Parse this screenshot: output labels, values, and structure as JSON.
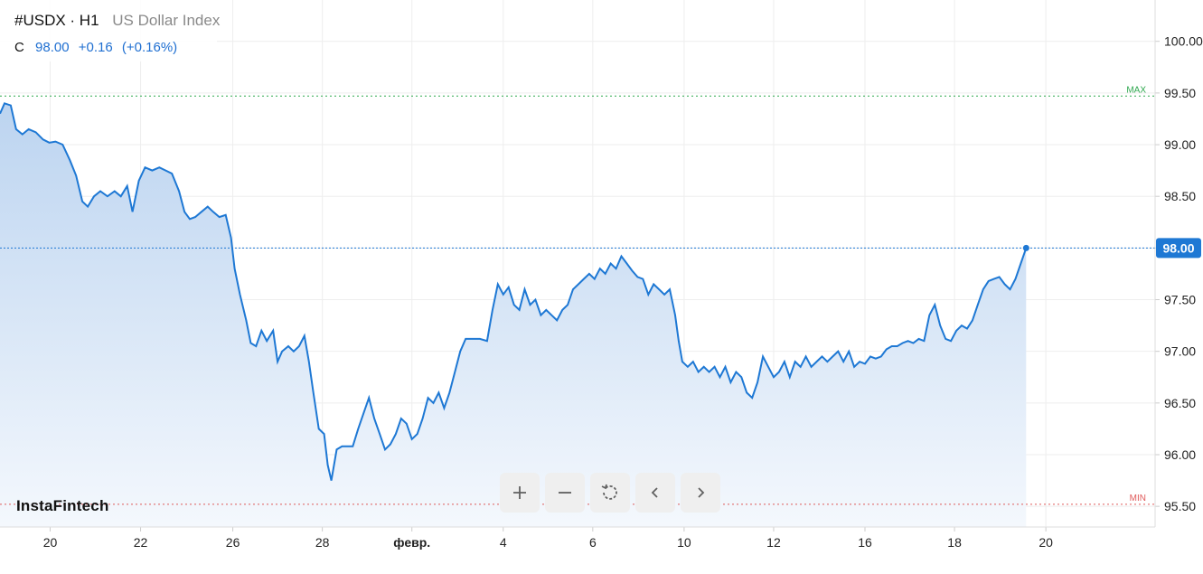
{
  "header": {
    "symbol": "#USDX · H1",
    "index_name": "US Dollar Index",
    "close_label": "C",
    "close_value": "98.00",
    "change": "+0.16",
    "change_pct": "(+0.16%)"
  },
  "brand": "InstaFintech",
  "controls": [
    {
      "name": "zoom-in-button",
      "icon": "plus-icon"
    },
    {
      "name": "zoom-out-button",
      "icon": "minus-icon"
    },
    {
      "name": "reset-button",
      "icon": "reset-icon"
    },
    {
      "name": "scroll-left-button",
      "icon": "chevron-left-icon"
    },
    {
      "name": "scroll-right-button",
      "icon": "chevron-right-icon"
    }
  ],
  "colors": {
    "line": "#1e78d4",
    "fill_top": "#bcd4f0",
    "fill_bottom": "#f4f8fd",
    "max_line": "#2fa84f",
    "min_line": "#e05a5a",
    "current_line": "#1e78d4",
    "grid": "#eeeeee",
    "axis_text": "#222222"
  },
  "chart_data": {
    "type": "area",
    "ylim": [
      95.3,
      100.4
    ],
    "y_ticks": [
      "95.50",
      "96.00",
      "96.50",
      "97.00",
      "97.50",
      "98.00",
      "98.50",
      "99.00",
      "99.50",
      "100.00"
    ],
    "x_ticks": [
      {
        "label": "20",
        "t": 0.56
      },
      {
        "label": "22",
        "t": 1.57
      },
      {
        "label": "26",
        "t": 2.6
      },
      {
        "label": "28",
        "t": 3.6
      },
      {
        "label": "февр.",
        "t": 4.6
      },
      {
        "label": "4",
        "t": 5.62
      },
      {
        "label": "6",
        "t": 6.62
      },
      {
        "label": "10",
        "t": 7.64
      },
      {
        "label": "12",
        "t": 8.64
      },
      {
        "label": "16",
        "t": 9.66
      },
      {
        "label": "18",
        "t": 10.66
      },
      {
        "label": "20",
        "t": 11.68
      }
    ],
    "x_range": [
      0,
      12.9
    ],
    "max_label": "MAX",
    "max_value": 99.47,
    "min_label": "MIN",
    "min_value": 95.52,
    "current_value": 98.0,
    "current_label": "98.00",
    "series": [
      {
        "points": [
          [
            0.0,
            99.3
          ],
          [
            0.05,
            99.4
          ],
          [
            0.12,
            99.38
          ],
          [
            0.18,
            99.15
          ],
          [
            0.25,
            99.1
          ],
          [
            0.32,
            99.15
          ],
          [
            0.4,
            99.12
          ],
          [
            0.48,
            99.05
          ],
          [
            0.55,
            99.02
          ],
          [
            0.62,
            99.03
          ],
          [
            0.7,
            99.0
          ],
          [
            0.78,
            98.85
          ],
          [
            0.85,
            98.7
          ],
          [
            0.92,
            98.45
          ],
          [
            0.98,
            98.4
          ],
          [
            1.05,
            98.5
          ],
          [
            1.12,
            98.55
          ],
          [
            1.2,
            98.5
          ],
          [
            1.28,
            98.55
          ],
          [
            1.35,
            98.5
          ],
          [
            1.42,
            98.6
          ],
          [
            1.48,
            98.35
          ],
          [
            1.55,
            98.65
          ],
          [
            1.62,
            98.78
          ],
          [
            1.7,
            98.75
          ],
          [
            1.78,
            98.78
          ],
          [
            1.85,
            98.75
          ],
          [
            1.92,
            98.72
          ],
          [
            2.0,
            98.55
          ],
          [
            2.06,
            98.35
          ],
          [
            2.12,
            98.28
          ],
          [
            2.18,
            98.3
          ],
          [
            2.25,
            98.35
          ],
          [
            2.32,
            98.4
          ],
          [
            2.38,
            98.35
          ],
          [
            2.45,
            98.3
          ],
          [
            2.52,
            98.32
          ],
          [
            2.58,
            98.1
          ],
          [
            2.62,
            97.8
          ],
          [
            2.68,
            97.55
          ],
          [
            2.75,
            97.3
          ],
          [
            2.8,
            97.08
          ],
          [
            2.86,
            97.05
          ],
          [
            2.92,
            97.2
          ],
          [
            2.98,
            97.1
          ],
          [
            3.05,
            97.2
          ],
          [
            3.1,
            96.9
          ],
          [
            3.15,
            97.0
          ],
          [
            3.22,
            97.05
          ],
          [
            3.28,
            97.0
          ],
          [
            3.34,
            97.05
          ],
          [
            3.4,
            97.15
          ],
          [
            3.45,
            96.9
          ],
          [
            3.5,
            96.6
          ],
          [
            3.56,
            96.25
          ],
          [
            3.62,
            96.2
          ],
          [
            3.66,
            95.9
          ],
          [
            3.7,
            95.75
          ],
          [
            3.76,
            96.05
          ],
          [
            3.82,
            96.08
          ],
          [
            3.88,
            96.08
          ],
          [
            3.94,
            96.08
          ],
          [
            4.0,
            96.25
          ],
          [
            4.06,
            96.4
          ],
          [
            4.12,
            96.55
          ],
          [
            4.18,
            96.35
          ],
          [
            4.24,
            96.2
          ],
          [
            4.3,
            96.05
          ],
          [
            4.36,
            96.1
          ],
          [
            4.42,
            96.2
          ],
          [
            4.48,
            96.35
          ],
          [
            4.54,
            96.3
          ],
          [
            4.6,
            96.15
          ],
          [
            4.66,
            96.2
          ],
          [
            4.72,
            96.35
          ],
          [
            4.78,
            96.55
          ],
          [
            4.84,
            96.5
          ],
          [
            4.9,
            96.6
          ],
          [
            4.96,
            96.45
          ],
          [
            5.02,
            96.6
          ],
          [
            5.08,
            96.8
          ],
          [
            5.14,
            97.0
          ],
          [
            5.2,
            97.12
          ],
          [
            5.28,
            97.12
          ],
          [
            5.36,
            97.12
          ],
          [
            5.44,
            97.1
          ],
          [
            5.5,
            97.4
          ],
          [
            5.56,
            97.65
          ],
          [
            5.62,
            97.55
          ],
          [
            5.68,
            97.62
          ],
          [
            5.74,
            97.45
          ],
          [
            5.8,
            97.4
          ],
          [
            5.86,
            97.6
          ],
          [
            5.92,
            97.45
          ],
          [
            5.98,
            97.5
          ],
          [
            6.04,
            97.35
          ],
          [
            6.1,
            97.4
          ],
          [
            6.16,
            97.35
          ],
          [
            6.22,
            97.3
          ],
          [
            6.28,
            97.4
          ],
          [
            6.34,
            97.45
          ],
          [
            6.4,
            97.6
          ],
          [
            6.46,
            97.65
          ],
          [
            6.52,
            97.7
          ],
          [
            6.58,
            97.75
          ],
          [
            6.64,
            97.7
          ],
          [
            6.7,
            97.8
          ],
          [
            6.76,
            97.75
          ],
          [
            6.82,
            97.85
          ],
          [
            6.88,
            97.8
          ],
          [
            6.94,
            97.92
          ],
          [
            7.0,
            97.85
          ],
          [
            7.06,
            97.78
          ],
          [
            7.12,
            97.72
          ],
          [
            7.18,
            97.7
          ],
          [
            7.24,
            97.55
          ],
          [
            7.3,
            97.65
          ],
          [
            7.36,
            97.6
          ],
          [
            7.42,
            97.55
          ],
          [
            7.48,
            97.6
          ],
          [
            7.54,
            97.35
          ],
          [
            7.58,
            97.1
          ],
          [
            7.62,
            96.9
          ],
          [
            7.68,
            96.85
          ],
          [
            7.74,
            96.9
          ],
          [
            7.8,
            96.8
          ],
          [
            7.86,
            96.85
          ],
          [
            7.92,
            96.8
          ],
          [
            7.98,
            96.85
          ],
          [
            8.04,
            96.75
          ],
          [
            8.1,
            96.85
          ],
          [
            8.16,
            96.7
          ],
          [
            8.22,
            96.8
          ],
          [
            8.28,
            96.75
          ],
          [
            8.34,
            96.6
          ],
          [
            8.4,
            96.55
          ],
          [
            8.46,
            96.7
          ],
          [
            8.52,
            96.95
          ],
          [
            8.58,
            96.85
          ],
          [
            8.64,
            96.75
          ],
          [
            8.7,
            96.8
          ],
          [
            8.76,
            96.9
          ],
          [
            8.82,
            96.75
          ],
          [
            8.88,
            96.9
          ],
          [
            8.94,
            96.85
          ],
          [
            9.0,
            96.95
          ],
          [
            9.06,
            96.85
          ],
          [
            9.12,
            96.9
          ],
          [
            9.18,
            96.95
          ],
          [
            9.24,
            96.9
          ],
          [
            9.3,
            96.95
          ],
          [
            9.36,
            97.0
          ],
          [
            9.42,
            96.9
          ],
          [
            9.48,
            97.0
          ],
          [
            9.54,
            96.85
          ],
          [
            9.6,
            96.9
          ],
          [
            9.66,
            96.88
          ],
          [
            9.72,
            96.95
          ],
          [
            9.78,
            96.93
          ],
          [
            9.84,
            96.95
          ],
          [
            9.9,
            97.02
          ],
          [
            9.96,
            97.05
          ],
          [
            10.02,
            97.05
          ],
          [
            10.08,
            97.08
          ],
          [
            10.14,
            97.1
          ],
          [
            10.2,
            97.08
          ],
          [
            10.26,
            97.12
          ],
          [
            10.32,
            97.1
          ],
          [
            10.38,
            97.35
          ],
          [
            10.44,
            97.45
          ],
          [
            10.5,
            97.25
          ],
          [
            10.56,
            97.12
          ],
          [
            10.62,
            97.1
          ],
          [
            10.68,
            97.2
          ],
          [
            10.74,
            97.25
          ],
          [
            10.8,
            97.22
          ],
          [
            10.86,
            97.3
          ],
          [
            10.92,
            97.45
          ],
          [
            10.98,
            97.6
          ],
          [
            11.04,
            97.68
          ],
          [
            11.1,
            97.7
          ],
          [
            11.16,
            97.72
          ],
          [
            11.22,
            97.65
          ],
          [
            11.28,
            97.6
          ],
          [
            11.34,
            97.7
          ],
          [
            11.4,
            97.85
          ],
          [
            11.46,
            98.0
          ]
        ]
      }
    ]
  }
}
